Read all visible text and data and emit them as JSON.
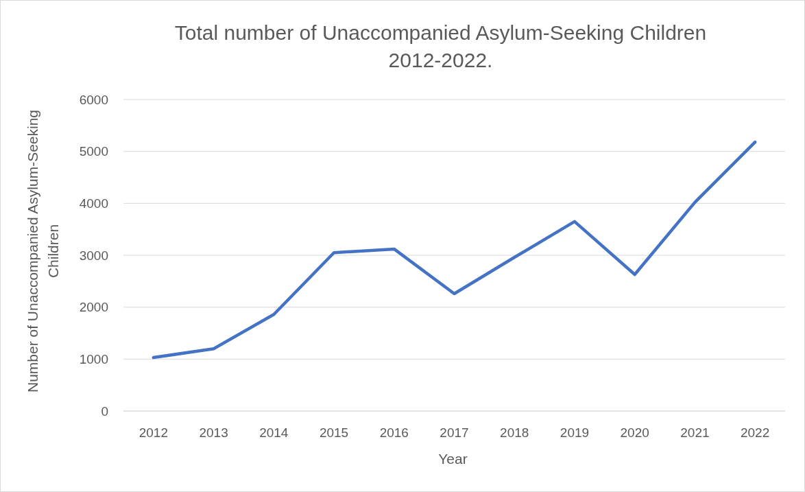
{
  "chart_data": {
    "type": "line",
    "title": "Total number of Unaccompanied Asylum-Seeking Children 2012-2022.",
    "xlabel": "Year",
    "ylabel": "Number of Unaccompanied Asylum-Seeking Children",
    "categories": [
      "2012",
      "2013",
      "2014",
      "2015",
      "2016",
      "2017",
      "2018",
      "2019",
      "2020",
      "2021",
      "2022"
    ],
    "series": [
      {
        "color": "#4472c4",
        "values": [
          1030,
          1200,
          1860,
          3050,
          3120,
          2260,
          2960,
          3650,
          2630,
          4020,
          5180
        ]
      }
    ],
    "ylim": [
      0,
      6000
    ],
    "yticks": [
      0,
      1000,
      2000,
      3000,
      4000,
      5000,
      6000
    ],
    "grid": "y",
    "marker": "none",
    "line_style": "solid"
  }
}
